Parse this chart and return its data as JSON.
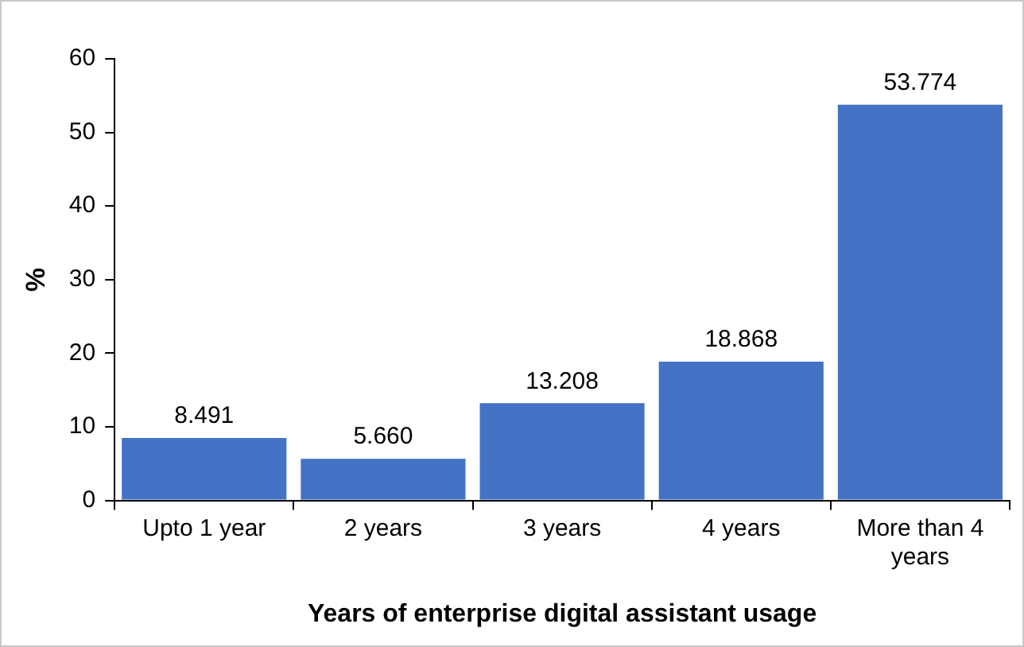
{
  "chart_data": {
    "type": "bar",
    "xlabel": "Years of enterprise digital assistant usage",
    "ylabel": "%",
    "categories": [
      "Upto 1 year",
      "2 years",
      "3 years",
      "4 years",
      "More than 4 years"
    ],
    "values": [
      8.491,
      5.66,
      13.208,
      18.868,
      53.774
    ],
    "value_labels": [
      "8.491",
      "5.660",
      "13.208",
      "18.868",
      "53.774"
    ],
    "color": "#4472c4",
    "ylim": [
      0,
      60
    ],
    "yticks": [
      0,
      10,
      20,
      30,
      40,
      50,
      60
    ],
    "grid": false,
    "legend": false
  }
}
